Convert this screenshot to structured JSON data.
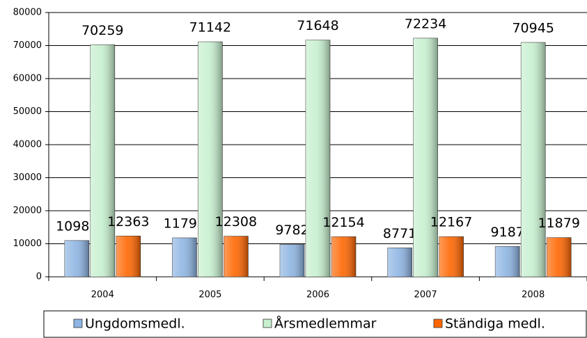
{
  "chart_data": {
    "type": "bar",
    "categories": [
      "2004",
      "2005",
      "2006",
      "2007",
      "2008"
    ],
    "series": [
      {
        "name": "Ungdomsmedl.",
        "color": "#8db4e2",
        "values": [
          10981,
          11798,
          9782,
          8771,
          9187
        ]
      },
      {
        "name": "Årsmedlemmar",
        "color": "#c6efce",
        "values": [
          70259,
          71142,
          71648,
          72234,
          70945
        ]
      },
      {
        "name": "Ständiga medl.",
        "color": "#ff6600",
        "values": [
          12363,
          12308,
          12154,
          12167,
          11879
        ]
      }
    ],
    "ylim": [
      0,
      80000
    ],
    "yticks": [
      0,
      10000,
      20000,
      30000,
      40000,
      50000,
      60000,
      70000,
      80000
    ],
    "grid": true
  }
}
